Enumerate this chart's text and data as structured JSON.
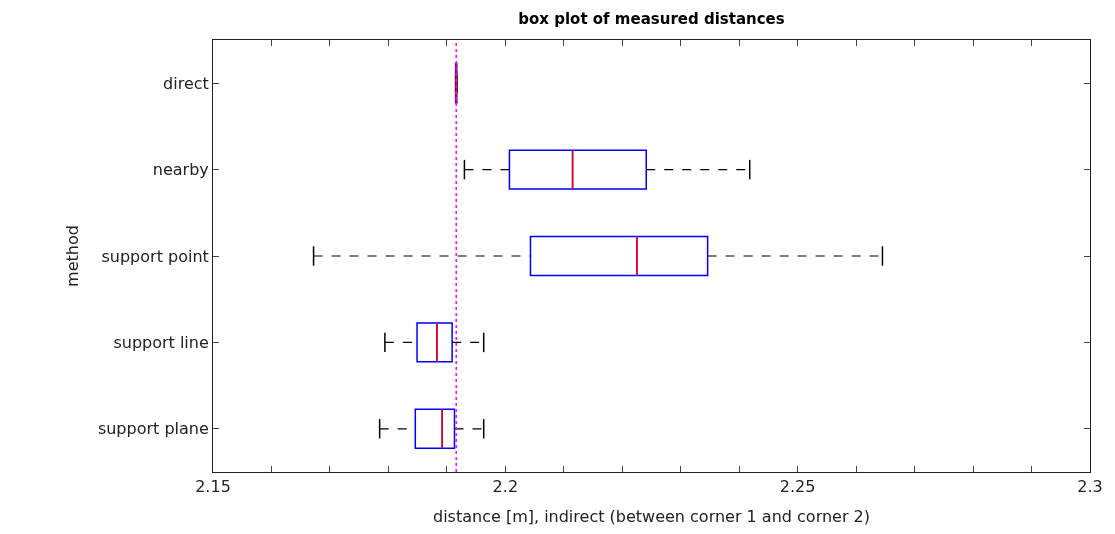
{
  "chart_data": {
    "type": "box",
    "orientation": "horizontal",
    "title": "box plot of measured distances",
    "xlabel": "distance [m], indirect (between corner 1 and corner 2)",
    "ylabel": "method",
    "categories": [
      "direct",
      "nearby",
      "support point",
      "support line",
      "support plane"
    ],
    "series": [
      {
        "color": "#0000ff",
        "boxes": [
          {
            "low": 2.1915,
            "q1": 2.1915,
            "median": 2.1916,
            "q3": 2.1917,
            "high": 2.1917
          },
          {
            "low": 2.193,
            "q1": 2.2007,
            "median": 2.2115,
            "q3": 2.2241,
            "high": 2.2418
          },
          {
            "low": 2.1672,
            "q1": 2.2043,
            "median": 2.2225,
            "q3": 2.2346,
            "high": 2.2645
          },
          {
            "low": 2.1794,
            "q1": 2.1849,
            "median": 2.1883,
            "q3": 2.1909,
            "high": 2.1963
          },
          {
            "low": 2.1785,
            "q1": 2.1846,
            "median": 2.1892,
            "q3": 2.1913,
            "high": 2.1963
          }
        ]
      }
    ],
    "xlim": [
      2.15,
      2.3
    ],
    "xticks": [
      2.15,
      {
        "value": 2.16,
        "label": null
      },
      {
        "value": 2.17,
        "label": null
      },
      {
        "value": 2.18,
        "label": null
      },
      {
        "value": 2.19,
        "label": null
      },
      {
        "value": 2.2,
        "label": "2.2"
      },
      {
        "value": 2.21,
        "label": null
      },
      {
        "value": 2.22,
        "label": null
      },
      {
        "value": 2.23,
        "label": null
      },
      {
        "value": 2.24,
        "label": null
      },
      2.25,
      {
        "value": 2.26,
        "label": null
      },
      {
        "value": 2.27,
        "label": null
      },
      {
        "value": 2.28,
        "label": null
      },
      {
        "value": 2.29,
        "label": null
      },
      {
        "value": 2.3,
        "label": "2.3"
      }
    ],
    "ref_lines": [
      {
        "axis": "x",
        "value": 2.1916,
        "color": "#ff00ff",
        "line_style": "dotted"
      }
    ]
  }
}
